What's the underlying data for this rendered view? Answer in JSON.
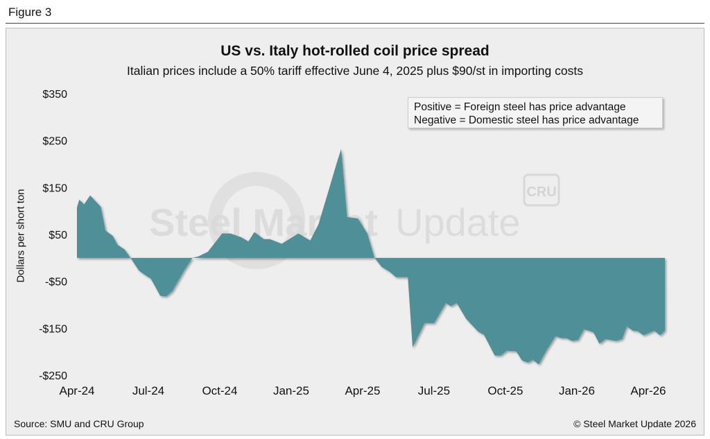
{
  "figure_label": "Figure 3",
  "legend": {
    "line1": "Positive = Foreign steel has price advantage",
    "line2": "Negative = Domestic steel has price advantage"
  },
  "watermark": {
    "text": "Steel Market Update",
    "badge": "CRU"
  },
  "footer": {
    "source": "Source: SMU and CRU Group",
    "copyright": "© Steel Market Update 2026"
  },
  "colors": {
    "fill": "#508f98",
    "background": "#eeeeee"
  },
  "chart_data": {
    "type": "area",
    "title": "US vs. Italy hot-rolled coil price spread",
    "subtitle": "Italian prices include a 50% tariff effective June 4, 2025 plus $90/st in importing costs",
    "ylabel": "Dollars per short ton",
    "xlabel": "",
    "ylim": [
      -250,
      350
    ],
    "yticks": [
      350,
      250,
      150,
      50,
      -50,
      -150,
      -250
    ],
    "ytick_labels": [
      "$350",
      "$250",
      "$150",
      "$50",
      "-$50",
      "-$150",
      "-$250"
    ],
    "xtick_labels": [
      "Apr-24",
      "Jul-24",
      "Oct-24",
      "Jan-25",
      "Apr-25",
      "Jul-25",
      "Oct-25",
      "Jan-26",
      "Apr-26"
    ],
    "xtick_months_since_apr24": [
      0,
      3,
      6,
      9,
      12,
      15,
      18,
      21,
      24
    ],
    "x_unit": "months since Apr-24",
    "points": [
      [
        0,
        108
      ],
      [
        0.1,
        124
      ],
      [
        0.3,
        114
      ],
      [
        0.55,
        133
      ],
      [
        1.0,
        109
      ],
      [
        1.2,
        58
      ],
      [
        1.5,
        47
      ],
      [
        1.7,
        28
      ],
      [
        2.0,
        18
      ],
      [
        2.25,
        0
      ],
      [
        2.6,
        -27
      ],
      [
        2.9,
        -38
      ],
      [
        3.1,
        -44
      ],
      [
        3.5,
        -81
      ],
      [
        3.75,
        -82
      ],
      [
        4.0,
        -71
      ],
      [
        4.5,
        -27
      ],
      [
        4.85,
        0
      ],
      [
        5.1,
        3
      ],
      [
        5.5,
        13
      ],
      [
        6.1,
        52
      ],
      [
        6.45,
        52
      ],
      [
        6.9,
        44
      ],
      [
        7.2,
        35
      ],
      [
        7.45,
        55
      ],
      [
        7.85,
        40
      ],
      [
        8.1,
        40
      ],
      [
        8.6,
        30
      ],
      [
        9.3,
        52
      ],
      [
        9.8,
        37
      ],
      [
        10.15,
        72
      ],
      [
        10.55,
        140
      ],
      [
        10.9,
        200
      ],
      [
        11.1,
        232
      ],
      [
        11.35,
        87
      ],
      [
        11.8,
        84
      ],
      [
        12.2,
        52
      ],
      [
        12.5,
        0
      ],
      [
        12.8,
        -19
      ],
      [
        13.15,
        -30
      ],
      [
        13.4,
        -41
      ],
      [
        13.9,
        -41
      ],
      [
        14.1,
        -191
      ],
      [
        14.6,
        -139
      ],
      [
        15.0,
        -139
      ],
      [
        15.5,
        -96
      ],
      [
        15.7,
        -103
      ],
      [
        15.95,
        -96
      ],
      [
        16.35,
        -130
      ],
      [
        16.85,
        -157
      ],
      [
        17.1,
        -164
      ],
      [
        17.55,
        -208
      ],
      [
        17.8,
        -208
      ],
      [
        18.05,
        -198
      ],
      [
        18.45,
        -199
      ],
      [
        18.7,
        -219
      ],
      [
        18.95,
        -223
      ],
      [
        19.15,
        -217
      ],
      [
        19.4,
        -227
      ],
      [
        19.7,
        -199
      ],
      [
        20.1,
        -167
      ],
      [
        20.35,
        -171
      ],
      [
        20.55,
        -171
      ],
      [
        20.8,
        -177
      ],
      [
        21.05,
        -175
      ],
      [
        21.3,
        -152
      ],
      [
        21.5,
        -155
      ],
      [
        21.7,
        -159
      ],
      [
        21.95,
        -183
      ],
      [
        22.2,
        -173
      ],
      [
        22.65,
        -177
      ],
      [
        22.9,
        -173
      ],
      [
        23.1,
        -146
      ],
      [
        23.35,
        -155
      ],
      [
        23.55,
        -156
      ],
      [
        23.8,
        -165
      ],
      [
        24.25,
        -155
      ],
      [
        24.5,
        -165
      ],
      [
        24.7,
        -155
      ]
    ],
    "grid": false,
    "legend_position": "top-right"
  }
}
